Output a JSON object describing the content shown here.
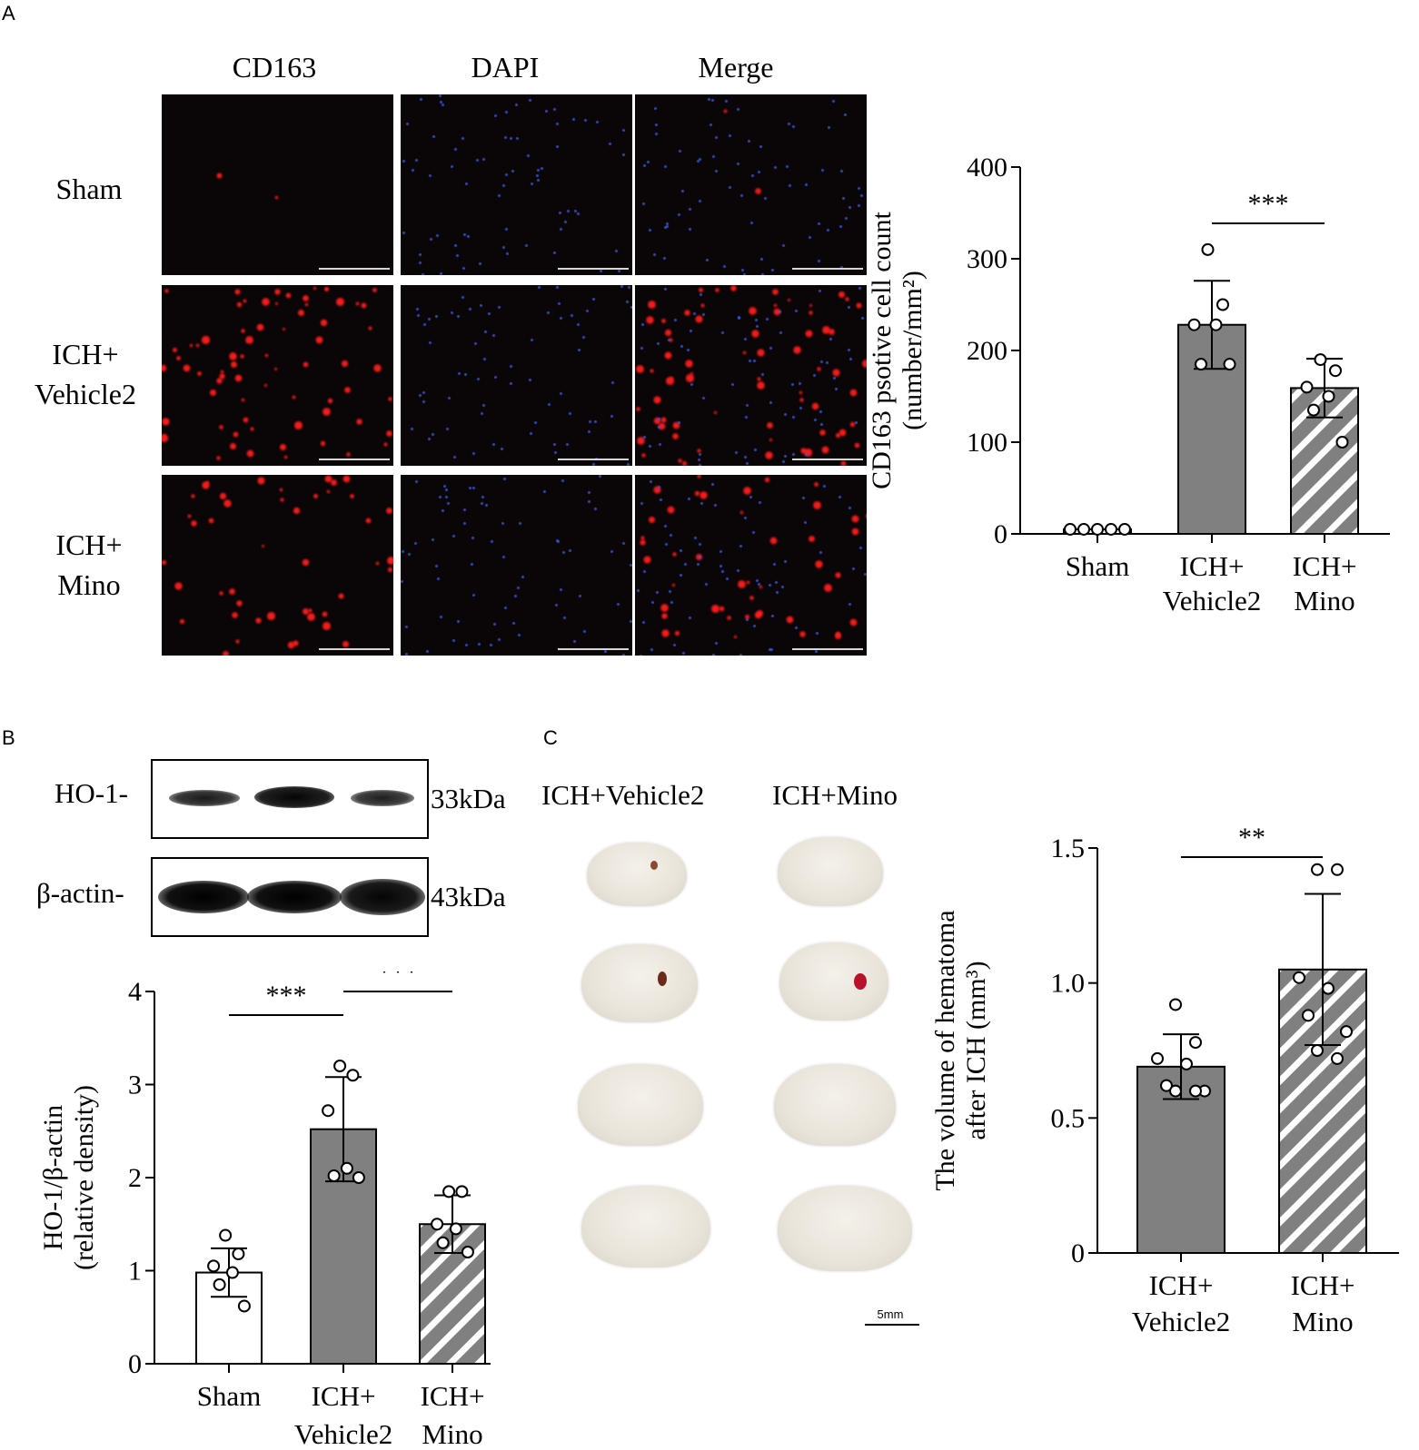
{
  "panel_a": {
    "letter": "A",
    "columns": [
      "CD163",
      "DAPI",
      "Merge"
    ],
    "rows": [
      {
        "label_line1": "Sham",
        "label_line2": ""
      },
      {
        "label_line1": "ICH+",
        "label_line2": "Vehicle2"
      },
      {
        "label_line1": "ICH+",
        "label_line2": "Mino"
      }
    ]
  },
  "panel_b": {
    "letter": "B",
    "blot": {
      "rows": [
        {
          "label": "HO-1-",
          "size": "33kDa"
        },
        {
          "label": "β-actin-",
          "size": "43kDa"
        }
      ]
    }
  },
  "panel_c": {
    "letter": "C",
    "conditions": [
      "ICH+Vehicle2",
      "ICH+Mino"
    ],
    "scale_label": "5mm"
  },
  "chart_data": [
    {
      "id": "cd163",
      "type": "bar",
      "categories": [
        "Sham",
        "ICH+ Vehicle2",
        "ICH+ Mino"
      ],
      "category_lines": [
        [
          "Sham"
        ],
        [
          "ICH+",
          "Vehicle2"
        ],
        [
          "ICH+",
          "Mino"
        ]
      ],
      "values": [
        5,
        228,
        159
      ],
      "errors": [
        0,
        48,
        32
      ],
      "fills": [
        "#ffffff",
        "#808080",
        "hatch"
      ],
      "points": [
        [
          5,
          5,
          5,
          5,
          5
        ],
        [
          310,
          250,
          228,
          228,
          185,
          185
        ],
        [
          190,
          178,
          160,
          150,
          135,
          100
        ]
      ],
      "ylim": [
        0,
        400
      ],
      "yticks": [
        0,
        100,
        200,
        300,
        400
      ],
      "ylabel_line1": "CD163 psotive cell count",
      "ylabel_line2": "(number/mm²)",
      "significance": [
        {
          "from": 1,
          "to": 2,
          "label": "***"
        }
      ]
    },
    {
      "id": "ho1",
      "type": "bar",
      "categories": [
        "Sham",
        "ICH+ Vehicle2",
        "ICH+ Mino"
      ],
      "category_lines": [
        [
          "Sham"
        ],
        [
          "ICH+",
          "Vehicle2"
        ],
        [
          "ICH+",
          "Mino"
        ]
      ],
      "values": [
        0.98,
        2.52,
        1.5
      ],
      "errors": [
        0.26,
        0.56,
        0.31
      ],
      "fills": [
        "#ffffff",
        "#808080",
        "hatch"
      ],
      "points": [
        [
          1.38,
          1.18,
          1.05,
          0.98,
          0.85,
          0.62
        ],
        [
          3.2,
          3.1,
          2.72,
          2.1,
          2.02,
          2.0
        ],
        [
          1.85,
          1.85,
          1.5,
          1.45,
          1.3,
          1.2
        ]
      ],
      "ylim": [
        0,
        4
      ],
      "yticks": [
        0,
        1,
        2,
        3,
        4
      ],
      "ylabel_line1": "HO-1/β-actin",
      "ylabel_line2": "(relative density)",
      "significance": [
        {
          "from": 0,
          "to": 1,
          "label": "***"
        },
        {
          "from": 1,
          "to": 2,
          "label": "***"
        }
      ]
    },
    {
      "id": "hematoma",
      "type": "bar",
      "categories": [
        "ICH+ Vehicle2",
        "ICH+ Mino"
      ],
      "category_lines": [
        [
          "ICH+",
          "Vehicle2"
        ],
        [
          "ICH+",
          "Mino"
        ]
      ],
      "values": [
        0.69,
        1.05
      ],
      "errors": [
        0.12,
        0.28
      ],
      "fills": [
        "#808080",
        "hatch"
      ],
      "points": [
        [
          0.92,
          0.78,
          0.72,
          0.7,
          0.62,
          0.6,
          0.6,
          0.6
        ],
        [
          1.42,
          1.42,
          1.02,
          0.98,
          0.88,
          0.82,
          0.75,
          0.72
        ]
      ],
      "ylim": [
        0,
        1.5
      ],
      "yticks": [
        0,
        0.5,
        1.0,
        1.5
      ],
      "ytick_labels": [
        "0",
        "0.5",
        "1.0",
        "1.5"
      ],
      "ylabel_line1": "The volume of hematoma",
      "ylabel_line2": "after ICH (mm³)",
      "significance": [
        {
          "from": 0,
          "to": 1,
          "label": "**"
        }
      ]
    }
  ]
}
